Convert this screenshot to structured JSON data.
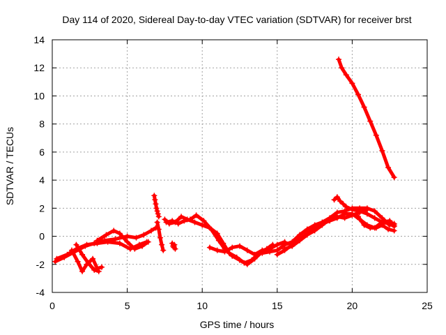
{
  "chart_data": {
    "type": "scatter",
    "title": "Day 114 of 2020, Sidereal Day-to-day VTEC variation (SDTVAR) for receiver brst",
    "xlabel": "GPS time / hours",
    "ylabel": "SDTVAR / TECUs",
    "xlim": [
      0,
      25
    ],
    "ylim": [
      -4,
      14
    ],
    "xticks": [
      0,
      5,
      10,
      15,
      20,
      25
    ],
    "yticks": [
      -4,
      -2,
      0,
      2,
      4,
      6,
      8,
      10,
      12,
      14
    ],
    "grid": true,
    "marker": "+",
    "series": [
      {
        "name": "SDTVAR",
        "color": "#ff0000",
        "tracks": [
          {
            "x": [
              0.2,
              0.8,
              1.5,
              2.2,
              2.8,
              3.5,
              4.2,
              5.0,
              5.6,
              6.1,
              6.6,
              6.9
            ],
            "y": [
              -1.8,
              -1.5,
              -1.1,
              -0.7,
              -0.5,
              -0.3,
              -0.2,
              0.0,
              -0.1,
              0.1,
              0.4,
              0.6
            ]
          },
          {
            "x": [
              0.3,
              1.0,
              1.6,
              2.3,
              3.0,
              3.7,
              4.5,
              5.2,
              5.8,
              6.3
            ],
            "y": [
              -1.6,
              -1.3,
              -0.9,
              -0.6,
              -0.5,
              -0.4,
              -0.5,
              -0.9,
              -0.6,
              -0.4
            ]
          },
          {
            "x": [
              1.3,
              1.7,
              2.0,
              2.3,
              2.7,
              3.0,
              3.3
            ],
            "y": [
              -1.0,
              -1.8,
              -2.5,
              -2.0,
              -1.6,
              -2.3,
              -2.2
            ]
          },
          {
            "x": [
              1.6,
              2.0,
              2.4,
              2.8,
              3.1
            ],
            "y": [
              -0.6,
              -1.3,
              -1.9,
              -2.4,
              -2.5
            ]
          },
          {
            "x": [
              3.0,
              3.6,
              4.1,
              4.5,
              5.0,
              5.5,
              6.0,
              6.4
            ],
            "y": [
              -0.3,
              0.1,
              0.4,
              0.2,
              -0.4,
              -0.9,
              -0.7,
              -0.4
            ]
          },
          {
            "x": [
              6.8,
              6.85,
              6.9,
              6.95,
              7.0,
              7.05,
              7.1
            ],
            "y": [
              2.9,
              2.6,
              2.3,
              2.0,
              1.8,
              1.6,
              1.4
            ]
          },
          {
            "x": [
              7.0,
              7.1,
              7.2,
              7.3,
              7.4
            ],
            "y": [
              1.0,
              0.5,
              -0.1,
              -0.6,
              -1.0
            ]
          },
          {
            "x": [
              8.0,
              8.05,
              8.1,
              8.15,
              8.2
            ],
            "y": [
              -0.5,
              -0.7,
              -0.8,
              -0.6,
              -0.9
            ]
          },
          {
            "x": [
              7.5,
              7.8,
              8.2,
              8.6,
              9.0,
              9.5,
              10.0,
              10.5,
              11.0,
              11.4,
              11.8,
              12.3,
              12.8,
              13.3,
              13.8,
              14.3,
              14.7
            ],
            "y": [
              1.2,
              0.9,
              1.0,
              1.4,
              1.2,
              1.0,
              0.8,
              0.6,
              0.2,
              -0.5,
              -1.2,
              -1.5,
              -1.9,
              -1.7,
              -1.2,
              -0.9,
              -0.6
            ]
          },
          {
            "x": [
              7.6,
              8.0,
              8.4,
              8.8,
              9.2,
              9.6,
              10.1,
              10.6,
              11.1,
              11.5,
              12.0,
              12.5,
              13.0,
              13.5,
              14.0,
              14.5
            ],
            "y": [
              1.0,
              1.1,
              0.9,
              1.1,
              1.2,
              1.5,
              1.1,
              0.5,
              -0.3,
              -0.9,
              -1.4,
              -1.7,
              -2.0,
              -1.6,
              -1.1,
              -0.8
            ]
          },
          {
            "x": [
              10.5,
              11.0,
              11.5,
              12.0,
              12.5,
              13.0,
              13.5,
              14.0,
              14.5,
              15.0,
              15.5
            ],
            "y": [
              -0.8,
              -1.0,
              -1.1,
              -0.8,
              -0.7,
              -1.0,
              -1.3,
              -1.0,
              -0.9,
              -0.6,
              -0.4
            ]
          },
          {
            "x": [
              14.0,
              14.5,
              15.0,
              15.5,
              16.0,
              16.5,
              17.0,
              17.5,
              18.0,
              18.5,
              19.0,
              19.5,
              20.0,
              20.5,
              21.0,
              21.5,
              22.0,
              22.5,
              22.8
            ],
            "y": [
              -1.2,
              -1.1,
              -1.0,
              -0.6,
              -0.4,
              0.1,
              0.5,
              0.8,
              1.0,
              1.3,
              1.7,
              1.8,
              2.0,
              2.0,
              2.0,
              1.8,
              1.3,
              0.8,
              0.9
            ]
          },
          {
            "x": [
              15.0,
              15.5,
              16.0,
              16.5,
              17.0,
              17.5,
              18.0,
              18.5,
              19.0,
              19.5,
              20.0,
              20.5,
              21.0,
              21.5,
              22.0,
              22.5,
              22.8
            ],
            "y": [
              -1.3,
              -1.0,
              -0.6,
              -0.2,
              0.2,
              0.6,
              0.9,
              1.1,
              1.3,
              1.6,
              1.6,
              1.2,
              0.8,
              0.6,
              1.0,
              1.1,
              0.8
            ]
          },
          {
            "x": [
              15.5,
              16.0,
              16.5,
              17.0,
              17.5,
              18.0,
              18.5,
              19.0,
              19.5,
              20.0,
              20.5,
              21.0
            ],
            "y": [
              -0.9,
              -0.7,
              -0.3,
              0.1,
              0.4,
              0.8,
              1.2,
              1.4,
              1.3,
              1.5,
              1.7,
              1.9
            ]
          },
          {
            "x": [
              18.8,
              19.0,
              19.2,
              19.4,
              19.6,
              20.0,
              20.5,
              21.0,
              21.5,
              22.0,
              22.5,
              22.8
            ],
            "y": [
              2.6,
              2.8,
              2.5,
              2.3,
              2.1,
              1.9,
              1.8,
              1.6,
              1.3,
              1.0,
              0.9,
              0.7
            ]
          },
          {
            "x": [
              20.4,
              20.8,
              21.2,
              21.6,
              22.0,
              22.4,
              22.8
            ],
            "y": [
              1.4,
              0.8,
              0.6,
              0.6,
              0.8,
              0.5,
              0.4
            ]
          },
          {
            "x": [
              19.1,
              19.3,
              19.6,
              20.0,
              20.4,
              20.8,
              21.2,
              21.6,
              22.0,
              22.4,
              22.8
            ],
            "y": [
              12.6,
              12.0,
              11.5,
              10.9,
              10.1,
              9.2,
              8.2,
              7.2,
              6.1,
              4.9,
              4.2
            ]
          }
        ]
      }
    ]
  }
}
